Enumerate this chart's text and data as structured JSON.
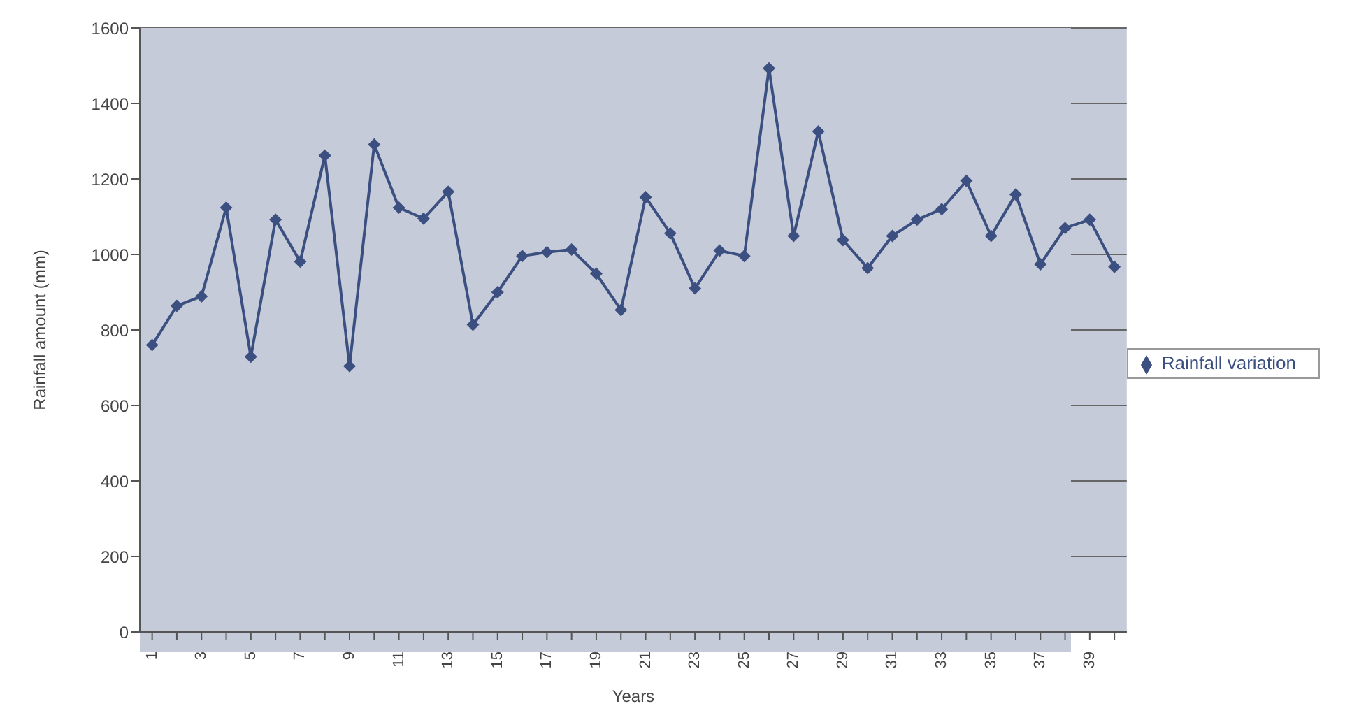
{
  "chart_data": {
    "type": "line",
    "xlabel": "Years",
    "ylabel": "Rainfall amount (mm)",
    "categories": [
      "1",
      null,
      "3",
      null,
      "5",
      null,
      "7",
      null,
      "9",
      null,
      "11",
      null,
      "13",
      null,
      "15",
      null,
      "17",
      null,
      "19",
      null,
      "21",
      null,
      "23",
      null,
      "25",
      null,
      "27",
      null,
      "29",
      null,
      "31",
      null,
      "33",
      null,
      "35",
      null,
      "37",
      null,
      "39",
      null
    ],
    "series": [
      {
        "name": "Rainfall variation",
        "color": "#3b4f80",
        "values": [
          760,
          864,
          889,
          1124,
          729,
          1092,
          981,
          1262,
          704,
          1291,
          1124,
          1095,
          1166,
          814,
          900,
          996,
          1006,
          1013,
          949,
          853,
          1152,
          1056,
          910,
          1010,
          996,
          1493,
          1049,
          1326,
          1038,
          964,
          1049,
          1092,
          1120,
          1195,
          1049,
          1159,
          974,
          1070,
          1092,
          967
        ]
      }
    ],
    "ylim": [
      0,
      1600
    ],
    "yticks": [
      0,
      200,
      400,
      600,
      800,
      1000,
      1200,
      1400,
      1600
    ],
    "grid": "y",
    "legend": "right",
    "marker": "diamond",
    "line_style": "solid"
  }
}
